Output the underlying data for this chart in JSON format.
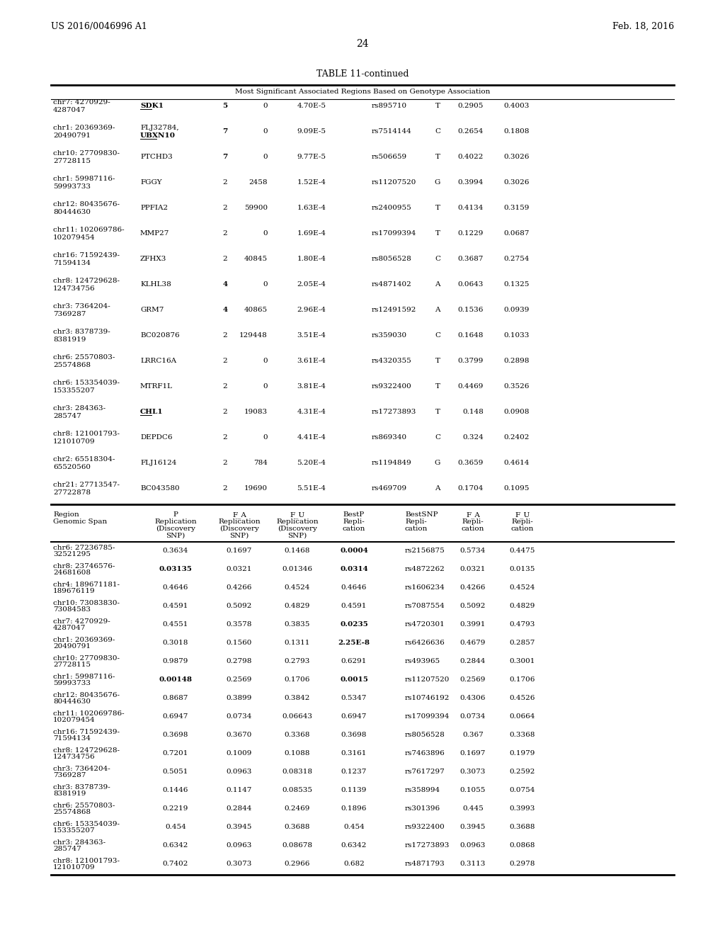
{
  "title_left": "US 2016/0046996 A1",
  "title_right": "Feb. 18, 2016",
  "page_num": "24",
  "table_title": "TABLE 11-continued",
  "table_subtitle": "Most Significant Associated Regions Based on Genotype Association",
  "top_table": {
    "rows": [
      [
        "chr7: 4270929-\n4287047",
        "SDK1",
        "5",
        "0",
        "4.70E-5",
        "rs895710",
        "T",
        "0.2905",
        "0.4003"
      ],
      [
        "chr1: 20369369-\n20490791",
        "FLJ32784,\nUBXN10",
        "7",
        "0",
        "9.09E-5",
        "rs7514144",
        "C",
        "0.2654",
        "0.1808"
      ],
      [
        "chr10: 27709830-\n27728115",
        "PTCHD3",
        "7",
        "0",
        "9.77E-5",
        "rs506659",
        "T",
        "0.4022",
        "0.3026"
      ],
      [
        "chr1: 59987116-\n59993733",
        "FGGY",
        "2",
        "2458",
        "1.52E-4",
        "rs11207520",
        "G",
        "0.3994",
        "0.3026"
      ],
      [
        "chr12: 80435676-\n80444630",
        "PPFIA2",
        "2",
        "59900",
        "1.63E-4",
        "rs2400955",
        "T",
        "0.4134",
        "0.3159"
      ],
      [
        "chr11: 102069786-\n102079454",
        "MMP27",
        "2",
        "0",
        "1.69E-4",
        "rs17099394",
        "T",
        "0.1229",
        "0.0687"
      ],
      [
        "chr16: 71592439-\n71594134",
        "ZFHX3",
        "2",
        "40845",
        "1.80E-4",
        "rs8056528",
        "C",
        "0.3687",
        "0.2754"
      ],
      [
        "chr8: 124729628-\n124734756",
        "KLHL38",
        "4",
        "0",
        "2.05E-4",
        "rs4871402",
        "A",
        "0.0643",
        "0.1325"
      ],
      [
        "chr3: 7364204-\n7369287",
        "GRM7",
        "4",
        "40865",
        "2.96E-4",
        "rs12491592",
        "A",
        "0.1536",
        "0.0939"
      ],
      [
        "chr3: 8378739-\n8381919",
        "BC020876",
        "2",
        "129448",
        "3.51E-4",
        "rs359030",
        "C",
        "0.1648",
        "0.1033"
      ],
      [
        "chr6: 25570803-\n25574868",
        "LRRC16A",
        "2",
        "0",
        "3.61E-4",
        "rs4320355",
        "T",
        "0.3799",
        "0.2898"
      ],
      [
        "chr6: 153354039-\n153355207",
        "MTRF1L",
        "2",
        "0",
        "3.81E-4",
        "rs9322400",
        "T",
        "0.4469",
        "0.3526"
      ],
      [
        "chr3: 284363-\n285747",
        "CHL1",
        "2",
        "19083",
        "4.31E-4",
        "rs17273893",
        "T",
        "0.148",
        "0.0908"
      ],
      [
        "chr8: 121001793-\n121010709",
        "DEPDC6",
        "2",
        "0",
        "4.41E-4",
        "rs869340",
        "C",
        "0.324",
        "0.2402"
      ],
      [
        "chr2: 65518304-\n65520560",
        "FLJ16124",
        "2",
        "784",
        "5.20E-4",
        "rs1194849",
        "G",
        "0.3659",
        "0.4614"
      ],
      [
        "chr21: 27713547-\n27722878",
        "BC043580",
        "2",
        "19690",
        "5.51E-4",
        "rs469709",
        "A",
        "0.1704",
        "0.1095"
      ]
    ],
    "bold_genes": [
      "SDK1",
      "UBXN10",
      "CHL1"
    ],
    "underline_genes": [
      "SDK1",
      "UBXN10",
      "CHL1"
    ],
    "bold_col3": [
      "5",
      "7",
      "7",
      "4",
      "4"
    ]
  },
  "bottom_table": {
    "rows": [
      [
        "chr6: 27236785-\n32521295",
        "0.3634",
        "0.1697",
        "0.1468",
        "0.0004",
        "rs2156875",
        "0.5734",
        "0.4475"
      ],
      [
        "chr8: 23746576-\n24681608",
        "0.03135",
        "0.0321",
        "0.01346",
        "0.0314",
        "rs4872262",
        "0.0321",
        "0.0135"
      ],
      [
        "chr4: 189671181-\n189676119",
        "0.4646",
        "0.4266",
        "0.4524",
        "0.4646",
        "rs1606234",
        "0.4266",
        "0.4524"
      ],
      [
        "chr10: 73083830-\n73084583",
        "0.4591",
        "0.5092",
        "0.4829",
        "0.4591",
        "rs7087554",
        "0.5092",
        "0.4829"
      ],
      [
        "chr7: 4270929-\n4287047",
        "0.4551",
        "0.3578",
        "0.3835",
        "0.0235",
        "rs4720301",
        "0.3991",
        "0.4793"
      ],
      [
        "chr1: 20369369-\n20490791",
        "0.3018",
        "0.1560",
        "0.1311",
        "2.25E-8",
        "rs6426636",
        "0.4679",
        "0.2857"
      ],
      [
        "chr10: 27709830-\n27728115",
        "0.9879",
        "0.2798",
        "0.2793",
        "0.6291",
        "rs493965",
        "0.2844",
        "0.3001"
      ],
      [
        "chr1: 59987116-\n59993733",
        "0.00148",
        "0.2569",
        "0.1706",
        "0.0015",
        "rs11207520",
        "0.2569",
        "0.1706"
      ],
      [
        "chr12: 80435676-\n80444630",
        "0.8687",
        "0.3899",
        "0.3842",
        "0.5347",
        "rs10746192",
        "0.4306",
        "0.4526"
      ],
      [
        "chr11: 102069786-\n102079454",
        "0.6947",
        "0.0734",
        "0.06643",
        "0.6947",
        "rs17099394",
        "0.0734",
        "0.0664"
      ],
      [
        "chr16: 71592439-\n71594134",
        "0.3698",
        "0.3670",
        "0.3368",
        "0.3698",
        "rs8056528",
        "0.367",
        "0.3368"
      ],
      [
        "chr8: 124729628-\n124734756",
        "0.7201",
        "0.1009",
        "0.1088",
        "0.3161",
        "rs7463896",
        "0.1697",
        "0.1979"
      ],
      [
        "chr3: 7364204-\n7369287",
        "0.5051",
        "0.0963",
        "0.08318",
        "0.1237",
        "rs7617297",
        "0.3073",
        "0.2592"
      ],
      [
        "chr3: 8378739-\n8381919",
        "0.1446",
        "0.1147",
        "0.08535",
        "0.1139",
        "rs358994",
        "0.1055",
        "0.0754"
      ],
      [
        "chr6: 25570803-\n25574868",
        "0.2219",
        "0.2844",
        "0.2469",
        "0.1896",
        "rs301396",
        "0.445",
        "0.3993"
      ],
      [
        "chr6: 153354039-\n153355207",
        "0.454",
        "0.3945",
        "0.3688",
        "0.454",
        "rs9322400",
        "0.3945",
        "0.3688"
      ],
      [
        "chr3: 284363-\n285747",
        "0.6342",
        "0.0963",
        "0.08678",
        "0.6342",
        "rs17273893",
        "0.0963",
        "0.0868"
      ],
      [
        "chr8: 121001793-\n121010709",
        "0.7402",
        "0.3073",
        "0.2966",
        "0.682",
        "rs4871793",
        "0.3113",
        "0.2978"
      ]
    ],
    "bold_values": [
      "0.0004",
      "0.03135",
      "0.0314",
      "0.0235",
      "2.25E-8",
      "0.00148",
      "0.0015"
    ]
  },
  "bg_color": "#ffffff",
  "text_color": "#000000",
  "font_size": 7.5
}
